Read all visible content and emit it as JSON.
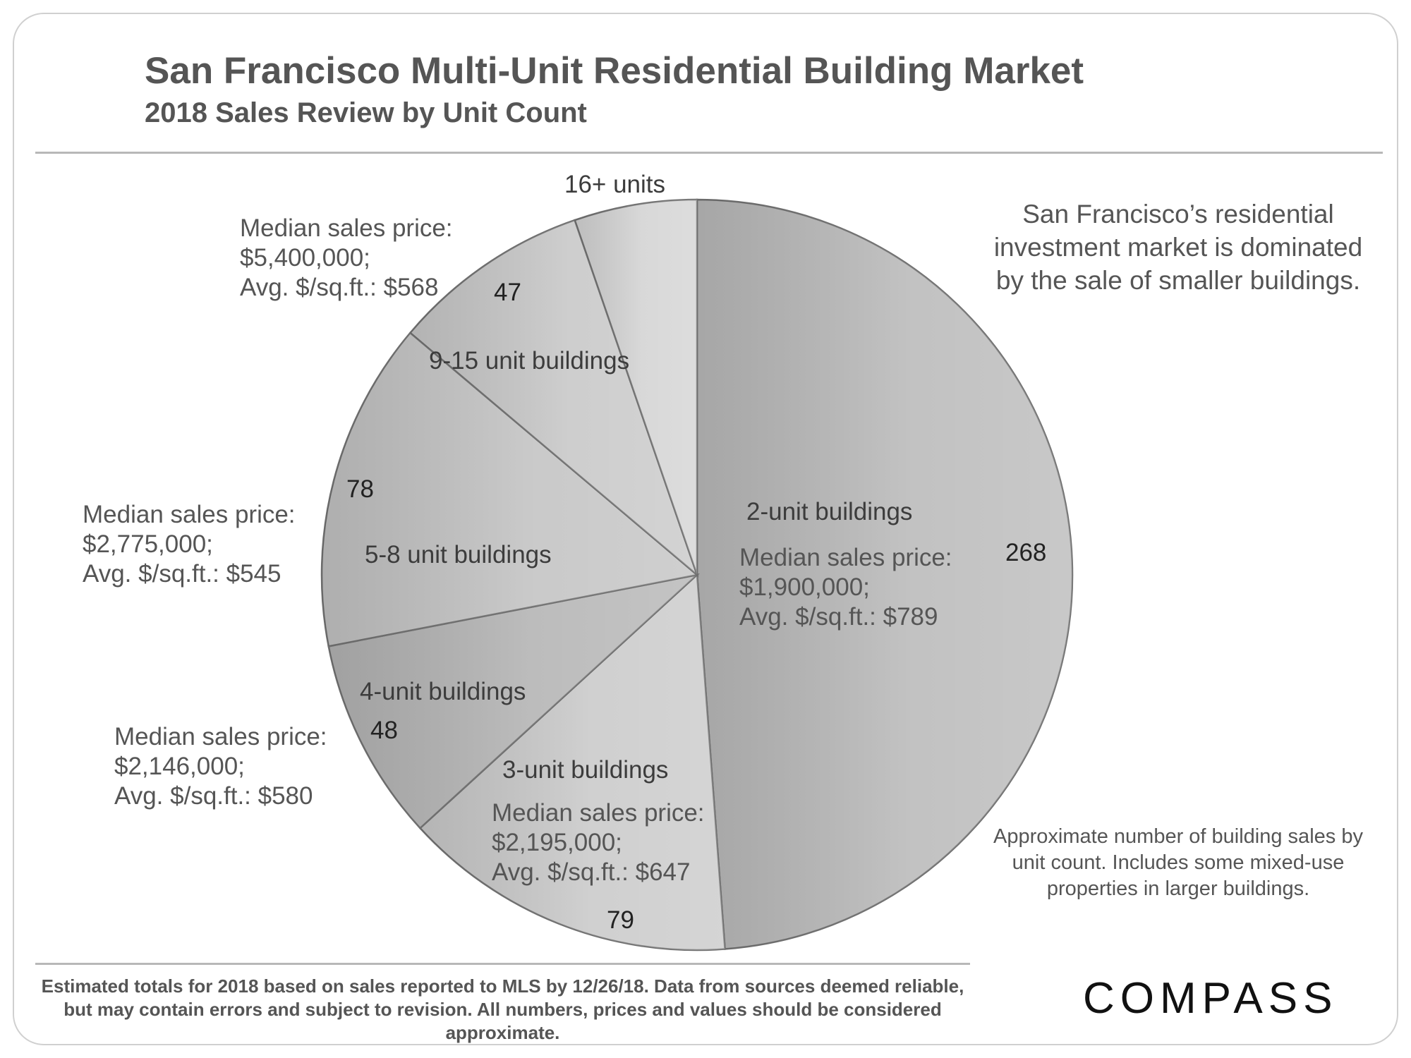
{
  "header": {
    "title": "San Francisco Multi-Unit Residential Building Market",
    "subtitle": "2018 Sales Review by Unit Count"
  },
  "chart_data": {
    "type": "pie",
    "categories": [
      "2-unit buildings",
      "3-unit buildings",
      "4-unit buildings",
      "5-8 unit buildings",
      "9-15 unit buildings",
      "16+ units"
    ],
    "values": [
      268,
      79,
      48,
      78,
      47,
      29
    ],
    "value_labels": [
      "268",
      "79",
      "48",
      "78",
      "47",
      ""
    ],
    "colors": [
      "#b9b9b9",
      "#c9c9c9",
      "#b3b3b3",
      "#c2c2c2",
      "#c7c7c7",
      "#d3d3d3"
    ],
    "medians": [
      {
        "line1": "Median sales price:",
        "line2": "$1,900,000;",
        "line3": "Avg. $/sq.ft.: $789"
      },
      {
        "line1": "Median sales price:",
        "line2": "$2,195,000;",
        "line3": "Avg. $/sq.ft.: $647"
      },
      {
        "line1": "Median sales price:",
        "line2": "$2,146,000;",
        "line3": "Avg. $/sq.ft.: $580"
      },
      {
        "line1": "Median sales price:",
        "line2": "$2,775,000;",
        "line3": "Avg. $/sq.ft.: $545"
      },
      {
        "line1": "Median sales price:",
        "line2": "$5,400,000;",
        "line3": "Avg. $/sq.ft.: $568"
      }
    ]
  },
  "notes": {
    "main": "San Francisco’s residential investment market is dominated by the sale of smaller buildings.",
    "approx": "Approximate number of  building sales by unit count. Includes some mixed-use properties in larger buildings."
  },
  "footer": {
    "text": "Estimated totals for 2018 based on sales reported to MLS by 12/26/18. Data from sources deemed reliable, but may contain errors and subject to revision. All numbers, prices and values should be considered  approximate."
  },
  "logo": {
    "text": "COMPASS"
  }
}
